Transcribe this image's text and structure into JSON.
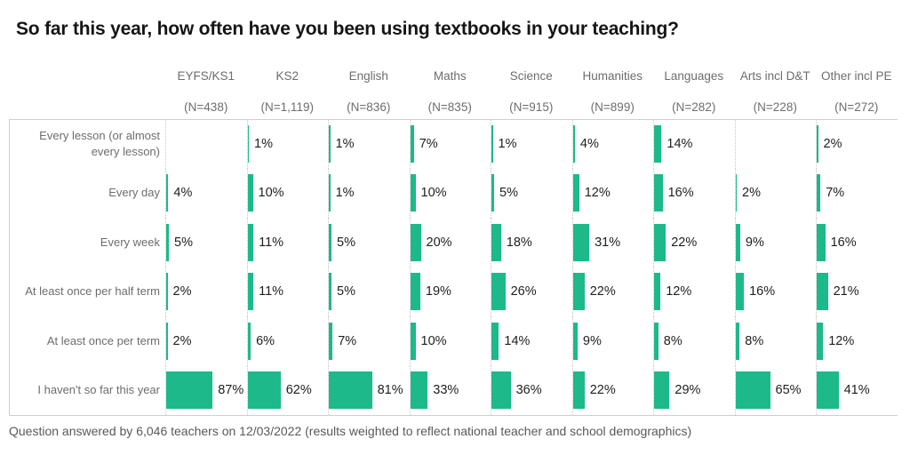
{
  "title": "So far this year, how often have you been using textbooks in your teaching?",
  "footnote": "Question answered by 6,046 teachers on 12/03/2022 (results weighted to reflect national teacher and school demographics)",
  "colors": {
    "bar": "#1db98a",
    "grid_solid": "#cfcfcf",
    "grid_dotted": "#c9c9c9",
    "header_text": "#6d6d6d",
    "row_label_text": "#6d6d6d",
    "value_text": "#1e1e1e",
    "title_text": "#151515",
    "footnote_text": "#595959"
  },
  "chart_data": {
    "type": "bar",
    "orientation": "horizontal",
    "layout": "small-multiples-grid",
    "unit": "%",
    "value_scale_per_cell": [
      0,
      100
    ],
    "title": "So far this year, how often have you been using textbooks in your teaching?",
    "footnote": "Question answered by 6,046 teachers on 12/03/2022 (results weighted to reflect national teacher and school demographics)",
    "categories": [
      "Every lesson (or almost every lesson)",
      "Every day",
      "Every week",
      "At least once per half term",
      "At least once per term",
      "I haven't so far this year"
    ],
    "columns": [
      {
        "label": "EYFS/KS1",
        "n_label": "(N=438)",
        "values": [
          null,
          4,
          5,
          2,
          2,
          87
        ]
      },
      {
        "label": "KS2",
        "n_label": "(N=1,119)",
        "values": [
          1,
          10,
          11,
          11,
          6,
          62
        ]
      },
      {
        "label": "English",
        "n_label": "(N=836)",
        "values": [
          1,
          1,
          5,
          5,
          7,
          81
        ]
      },
      {
        "label": "Maths",
        "n_label": "(N=835)",
        "values": [
          7,
          10,
          20,
          19,
          10,
          33
        ]
      },
      {
        "label": "Science",
        "n_label": "(N=915)",
        "values": [
          1,
          5,
          18,
          26,
          14,
          36
        ]
      },
      {
        "label": "Humanities",
        "n_label": "(N=899)",
        "values": [
          4,
          12,
          31,
          22,
          9,
          22
        ]
      },
      {
        "label": "Languages",
        "n_label": "(N=282)",
        "values": [
          14,
          16,
          22,
          12,
          8,
          29
        ]
      },
      {
        "label": "Arts incl D&T",
        "n_label": "(N=228)",
        "values": [
          null,
          2,
          9,
          16,
          8,
          65
        ]
      },
      {
        "label": "Other incl PE",
        "n_label": "(N=272)",
        "values": [
          2,
          7,
          16,
          21,
          12,
          41
        ]
      }
    ]
  }
}
